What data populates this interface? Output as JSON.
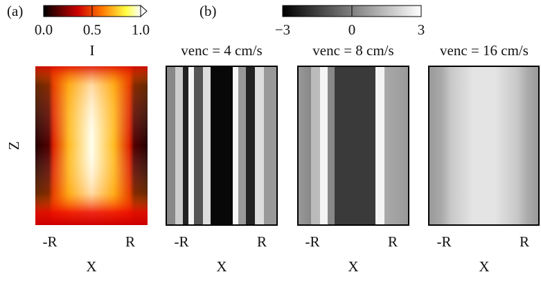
{
  "panel_a": {
    "label": "(a)",
    "colorbar": {
      "lim": [
        0,
        1
      ],
      "ticks": [
        {
          "value": 0,
          "label": "0.0"
        },
        {
          "value": 0.5,
          "label": "0.5"
        },
        {
          "value": 1,
          "label": "1.0"
        }
      ],
      "label": "I"
    },
    "y_label": "Z",
    "x_ticks": [
      "-R",
      "R"
    ],
    "x_label": "X"
  },
  "panel_b": {
    "label": "(b)",
    "colorbar": {
      "lim": [
        -3,
        3
      ],
      "ticks": [
        {
          "value": -3,
          "label": "−3"
        },
        0,
        3
      ]
    },
    "panels": [
      {
        "title": "venc = 4 cm/s",
        "x_ticks": [
          "-R",
          "R"
        ],
        "x_label": "X"
      },
      {
        "title": "venc = 8 cm/s",
        "x_ticks": [
          "-R",
          "R"
        ],
        "x_label": "X"
      },
      {
        "title": "venc = 16 cm/s",
        "x_ticks": [
          "-R",
          "R"
        ],
        "x_label": "X"
      }
    ]
  }
}
